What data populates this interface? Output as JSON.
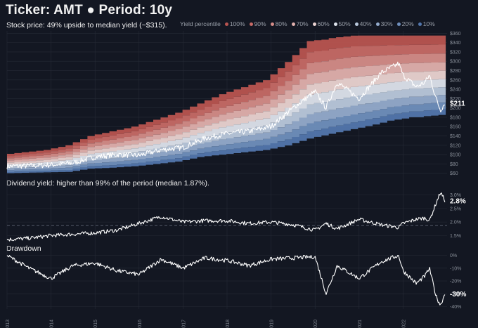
{
  "title": "Ticker: AMT  ●  Period: 10y",
  "subtitles": {
    "price": "Stock price:  49% upside to median yield (~$315).",
    "yield": "Dividend yield: higher than 99% of the period (median 1.87%).",
    "drawdown": "Drawdown"
  },
  "legend": {
    "title": "Yield percentile",
    "items": [
      {
        "label": "100%",
        "color": "#b85450"
      },
      {
        "label": "90%",
        "color": "#c66a66"
      },
      {
        "label": "80%",
        "color": "#d48c88"
      },
      {
        "label": "70%",
        "color": "#e0b0ad"
      },
      {
        "label": "60%",
        "color": "#ead3d1"
      },
      {
        "label": "50%",
        "color": "#dde3ec"
      },
      {
        "label": "40%",
        "color": "#b9c8dc"
      },
      {
        "label": "30%",
        "color": "#93abcc"
      },
      {
        "label": "20%",
        "color": "#6f8fbd"
      },
      {
        "label": "10%",
        "color": "#5276ad"
      }
    ]
  },
  "chart_data": [
    {
      "type": "area",
      "title": "Stock price:  49% upside to median yield (~$315).",
      "ylim": [
        55,
        365
      ],
      "yticks": [
        60,
        80,
        100,
        120,
        140,
        160,
        180,
        200,
        220,
        240,
        260,
        280,
        300,
        320,
        340,
        360
      ],
      "x": [
        2013.0,
        2013.5,
        2014.0,
        2014.5,
        2015.0,
        2015.5,
        2016.0,
        2016.5,
        2017.0,
        2017.5,
        2018.0,
        2018.5,
        2019.0,
        2019.5,
        2020.0,
        2020.25,
        2020.5,
        2021.0,
        2021.5,
        2021.9,
        2022.0,
        2022.3,
        2022.5,
        2022.6,
        2022.75,
        2022.85,
        2022.95
      ],
      "series": [
        {
          "name": "price",
          "values": [
            75,
            76,
            78,
            82,
            95,
            100,
            98,
            110,
            115,
            135,
            145,
            150,
            160,
            200,
            235,
            200,
            255,
            220,
            275,
            295,
            270,
            245,
            255,
            270,
            220,
            195,
            211
          ]
        }
      ],
      "bands_description_values": {
        "upper_100": [
          100,
          105,
          110,
          120,
          140,
          150,
          160,
          175,
          190,
          210,
          230,
          245,
          260,
          300,
          345,
          345,
          350,
          355,
          355,
          355,
          355,
          355,
          355,
          355,
          355,
          355,
          355
        ],
        "lower_10": [
          60,
          61,
          62,
          63,
          70,
          72,
          75,
          80,
          85,
          95,
          100,
          105,
          110,
          120,
          135,
          140,
          145,
          155,
          165,
          175,
          175,
          180,
          180,
          182,
          183,
          184,
          185
        ]
      },
      "last_label": "$211"
    },
    {
      "type": "line",
      "title": "Dividend yield: higher than 99% of the period (median 1.87%).",
      "ylim": [
        1.25,
        3.25
      ],
      "yticks_labels": [
        "1.5%",
        "2.0%",
        "2.5%",
        "3.0%"
      ],
      "yticks": [
        1.5,
        2.0,
        2.5,
        3.0
      ],
      "median": 1.87,
      "x": [
        2013.0,
        2013.5,
        2014.0,
        2014.5,
        2015.0,
        2015.5,
        2016.0,
        2016.5,
        2017.0,
        2017.5,
        2018.0,
        2018.5,
        2019.0,
        2019.5,
        2020.0,
        2020.25,
        2020.5,
        2021.0,
        2021.5,
        2021.9,
        2022.0,
        2022.3,
        2022.5,
        2022.6,
        2022.75,
        2022.85,
        2022.95
      ],
      "series": [
        {
          "name": "yield",
          "values": [
            1.35,
            1.4,
            1.5,
            1.55,
            1.6,
            1.7,
            1.95,
            2.2,
            2.0,
            2.05,
            2.05,
            1.95,
            2.0,
            1.9,
            1.7,
            1.95,
            1.75,
            2.1,
            1.9,
            1.8,
            1.95,
            2.1,
            2.15,
            2.05,
            2.7,
            3.1,
            2.8
          ]
        }
      ],
      "last_label": "2.8%"
    },
    {
      "type": "line",
      "title": "Drawdown",
      "ylim": [
        -42,
        2
      ],
      "yticks_labels": [
        "-40%",
        "-30%",
        "-20%",
        "-10%",
        "0%"
      ],
      "yticks": [
        -40,
        -30,
        -20,
        -10,
        0
      ],
      "x": [
        2013.0,
        2013.5,
        2014.0,
        2014.5,
        2015.0,
        2015.5,
        2016.0,
        2016.5,
        2017.0,
        2017.5,
        2018.0,
        2018.5,
        2019.0,
        2019.5,
        2020.0,
        2020.25,
        2020.5,
        2021.0,
        2021.5,
        2021.9,
        2022.0,
        2022.3,
        2022.5,
        2022.6,
        2022.75,
        2022.85,
        2022.95
      ],
      "series": [
        {
          "name": "drawdown",
          "values": [
            0,
            -10,
            -18,
            -8,
            -6,
            -12,
            -15,
            -3,
            -10,
            -2,
            -4,
            -8,
            -3,
            -2,
            -1,
            -30,
            -8,
            -18,
            -5,
            0,
            -12,
            -22,
            -16,
            -10,
            -32,
            -39,
            -30
          ]
        }
      ],
      "last_label": "-30%"
    }
  ],
  "xaxis": {
    "ticks": [
      "2013",
      "2014",
      "2015",
      "2016",
      "2017",
      "2018",
      "2019",
      "2020",
      "2021",
      "2022"
    ],
    "range": [
      2013.0,
      2023.0
    ]
  }
}
